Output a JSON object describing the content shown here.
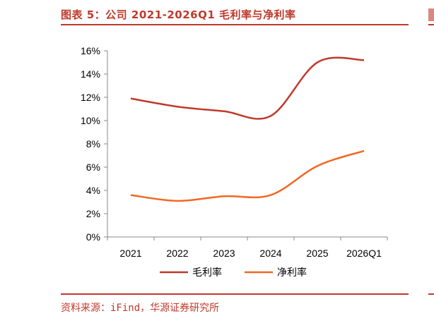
{
  "header": {
    "title": "图表 5：公司 2021-2026Q1 毛利率与净利率"
  },
  "footer": {
    "source": "资料来源：iFind，华源证券研究所"
  },
  "colors": {
    "accent": "#c0392b",
    "gross": "#c0392b",
    "net": "#f26722"
  },
  "chart_data": {
    "type": "line",
    "categories": [
      "2021",
      "2022",
      "2023",
      "2024",
      "2025",
      "2026Q1"
    ],
    "series": [
      {
        "name": "毛利率",
        "values": [
          11.9,
          11.2,
          10.8,
          10.4,
          15.0,
          15.2
        ]
      },
      {
        "name": "净利率",
        "values": [
          3.6,
          3.1,
          3.5,
          3.6,
          6.1,
          7.4
        ]
      }
    ],
    "yticks": [
      "0%",
      "2%",
      "4%",
      "6%",
      "8%",
      "10%",
      "12%",
      "14%",
      "16%"
    ],
    "ylim": [
      0,
      16
    ],
    "title": "",
    "xlabel": "",
    "ylabel": "",
    "legend": "bottom",
    "grid": false
  }
}
